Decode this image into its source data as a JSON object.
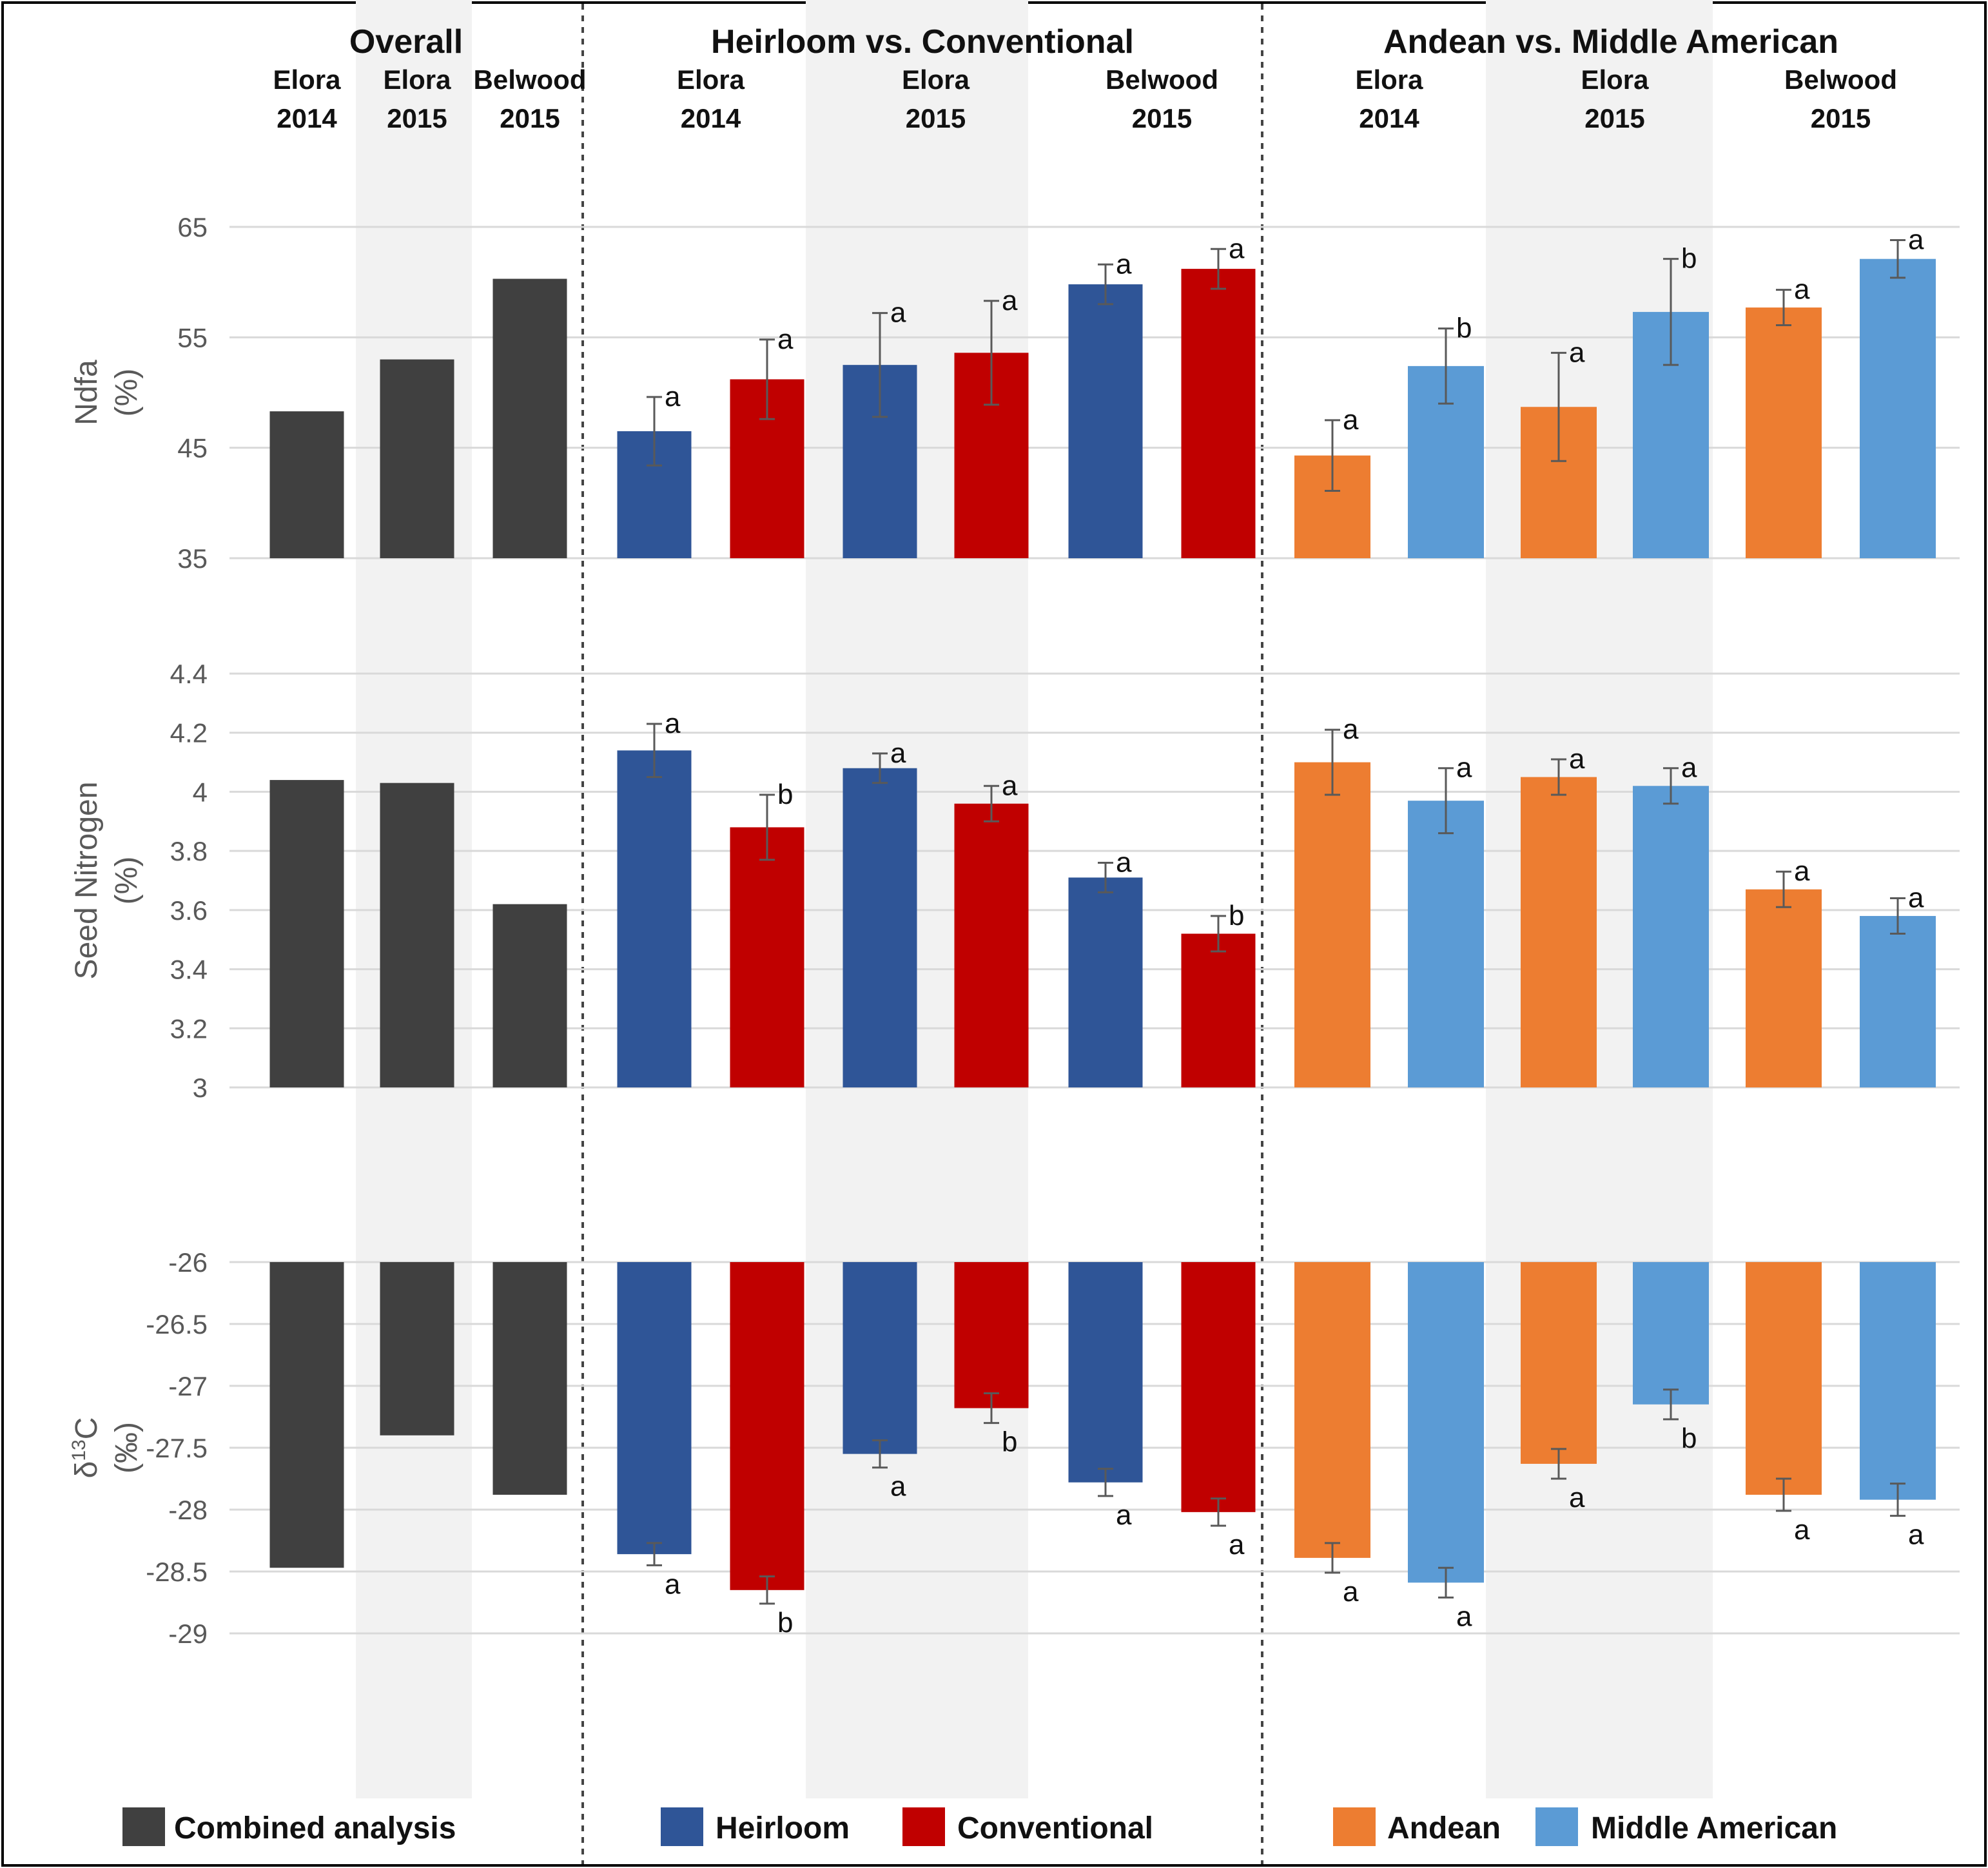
{
  "colors": {
    "combined": "#404040",
    "heirloom": "#2F5597",
    "conventional": "#C00000",
    "andean": "#ED7D31",
    "middle_american": "#5B9BD5",
    "grid": "#d9d9d9",
    "shade": "#f2f2f2",
    "error_bar": "#595959"
  },
  "groups": [
    {
      "title": "Overall",
      "sites": [
        {
          "line1": "Elora",
          "line2": "2014"
        },
        {
          "line1": "Elora",
          "line2": "2015"
        },
        {
          "line1": "Belwood",
          "line2": "2015"
        }
      ]
    },
    {
      "title": "Heirloom vs. Conventional",
      "sites": [
        {
          "line1": "Elora",
          "line2": "2014"
        },
        {
          "line1": "Elora",
          "line2": "2015"
        },
        {
          "line1": "Belwood",
          "line2": "2015"
        }
      ]
    },
    {
      "title": "Andean vs. Middle American",
      "sites": [
        {
          "line1": "Elora",
          "line2": "2014"
        },
        {
          "line1": "Elora",
          "line2": "2015"
        },
        {
          "line1": "Belwood",
          "line2": "2015"
        }
      ]
    }
  ],
  "legend": [
    {
      "label": "Combined analysis",
      "color_key": "combined"
    },
    {
      "label": "Heirloom",
      "color_key": "heirloom"
    },
    {
      "label": "Conventional",
      "color_key": "conventional"
    },
    {
      "label": "Andean",
      "color_key": "andean"
    },
    {
      "label": "Middle American",
      "color_key": "middle_american"
    }
  ],
  "chart_data": [
    {
      "type": "bar",
      "ylabel_line1": "Ndfa",
      "ylabel_line2": "(%)",
      "ylim": [
        35,
        65
      ],
      "ticks": [
        "35",
        "45",
        "55",
        "65"
      ],
      "overall": [
        48.3,
        53.0,
        60.3
      ],
      "series": [
        {
          "name": "Heirloom",
          "color_key": "heirloom",
          "values": [
            46.5,
            52.5,
            59.8
          ],
          "errors": [
            3.1,
            4.7,
            1.8
          ],
          "letters": [
            "a",
            "a",
            "a"
          ]
        },
        {
          "name": "Conventional",
          "color_key": "conventional",
          "values": [
            51.2,
            53.6,
            61.2
          ],
          "errors": [
            3.6,
            4.7,
            1.8
          ],
          "letters": [
            "a",
            "a",
            "a"
          ]
        },
        {
          "name": "Andean",
          "color_key": "andean",
          "values": [
            44.3,
            48.7,
            57.7
          ],
          "errors": [
            3.2,
            4.9,
            1.6
          ],
          "letters": [
            "a",
            "a",
            "a"
          ]
        },
        {
          "name": "Middle American",
          "color_key": "middle_american",
          "values": [
            52.4,
            57.3,
            62.1
          ],
          "errors": [
            3.4,
            4.8,
            1.7
          ],
          "letters": [
            "b",
            "b",
            "a"
          ]
        }
      ]
    },
    {
      "type": "bar",
      "ylabel_line1": "Seed Nitrogen",
      "ylabel_line2": "(%)",
      "ylim": [
        3,
        4.4
      ],
      "ticks": [
        "3",
        "3.2",
        "3.4",
        "3.6",
        "3.8",
        "4",
        "4.2",
        "4.4"
      ],
      "overall": [
        4.04,
        4.03,
        3.62
      ],
      "series": [
        {
          "name": "Heirloom",
          "color_key": "heirloom",
          "values": [
            4.14,
            4.08,
            3.71
          ],
          "errors": [
            0.09,
            0.05,
            0.05
          ],
          "letters": [
            "a",
            "a",
            "a"
          ]
        },
        {
          "name": "Conventional",
          "color_key": "conventional",
          "values": [
            3.88,
            3.96,
            3.52
          ],
          "errors": [
            0.11,
            0.06,
            0.06
          ],
          "letters": [
            "b",
            "a",
            "b"
          ]
        },
        {
          "name": "Andean",
          "color_key": "andean",
          "values": [
            4.1,
            4.05,
            3.67
          ],
          "errors": [
            0.11,
            0.06,
            0.06
          ],
          "letters": [
            "a",
            "a",
            "a"
          ]
        },
        {
          "name": "Middle American",
          "color_key": "middle_american",
          "values": [
            3.97,
            4.02,
            3.58
          ],
          "errors": [
            0.11,
            0.06,
            0.06
          ],
          "letters": [
            "a",
            "a",
            "a"
          ]
        }
      ]
    },
    {
      "type": "bar",
      "ylabel_line1": "δ13C",
      "ylabel_line2": "(‰)",
      "ylim": [
        -29,
        -26
      ],
      "ticks": [
        "-29",
        "-28.5",
        "-28",
        "-27.5",
        "-27",
        "-26.5",
        "-26"
      ],
      "overall": [
        -28.47,
        -27.4,
        -27.88
      ],
      "series": [
        {
          "name": "Heirloom",
          "color_key": "heirloom",
          "values": [
            -28.36,
            -27.55,
            -27.78
          ],
          "errors": [
            0.09,
            0.11,
            0.11
          ],
          "letters": [
            "a",
            "a",
            "a"
          ]
        },
        {
          "name": "Conventional",
          "color_key": "conventional",
          "values": [
            -28.65,
            -27.18,
            -28.02
          ],
          "errors": [
            0.11,
            0.12,
            0.11
          ],
          "letters": [
            "b",
            "b",
            "a"
          ]
        },
        {
          "name": "Andean",
          "color_key": "andean",
          "values": [
            -28.39,
            -27.63,
            -27.88
          ],
          "errors": [
            0.12,
            0.12,
            0.13
          ],
          "letters": [
            "a",
            "a",
            "a"
          ]
        },
        {
          "name": "Middle American",
          "color_key": "middle_american",
          "values": [
            -28.59,
            -27.15,
            -27.92
          ],
          "errors": [
            0.12,
            0.12,
            0.13
          ],
          "letters": [
            "a",
            "b",
            "a"
          ]
        }
      ]
    }
  ]
}
